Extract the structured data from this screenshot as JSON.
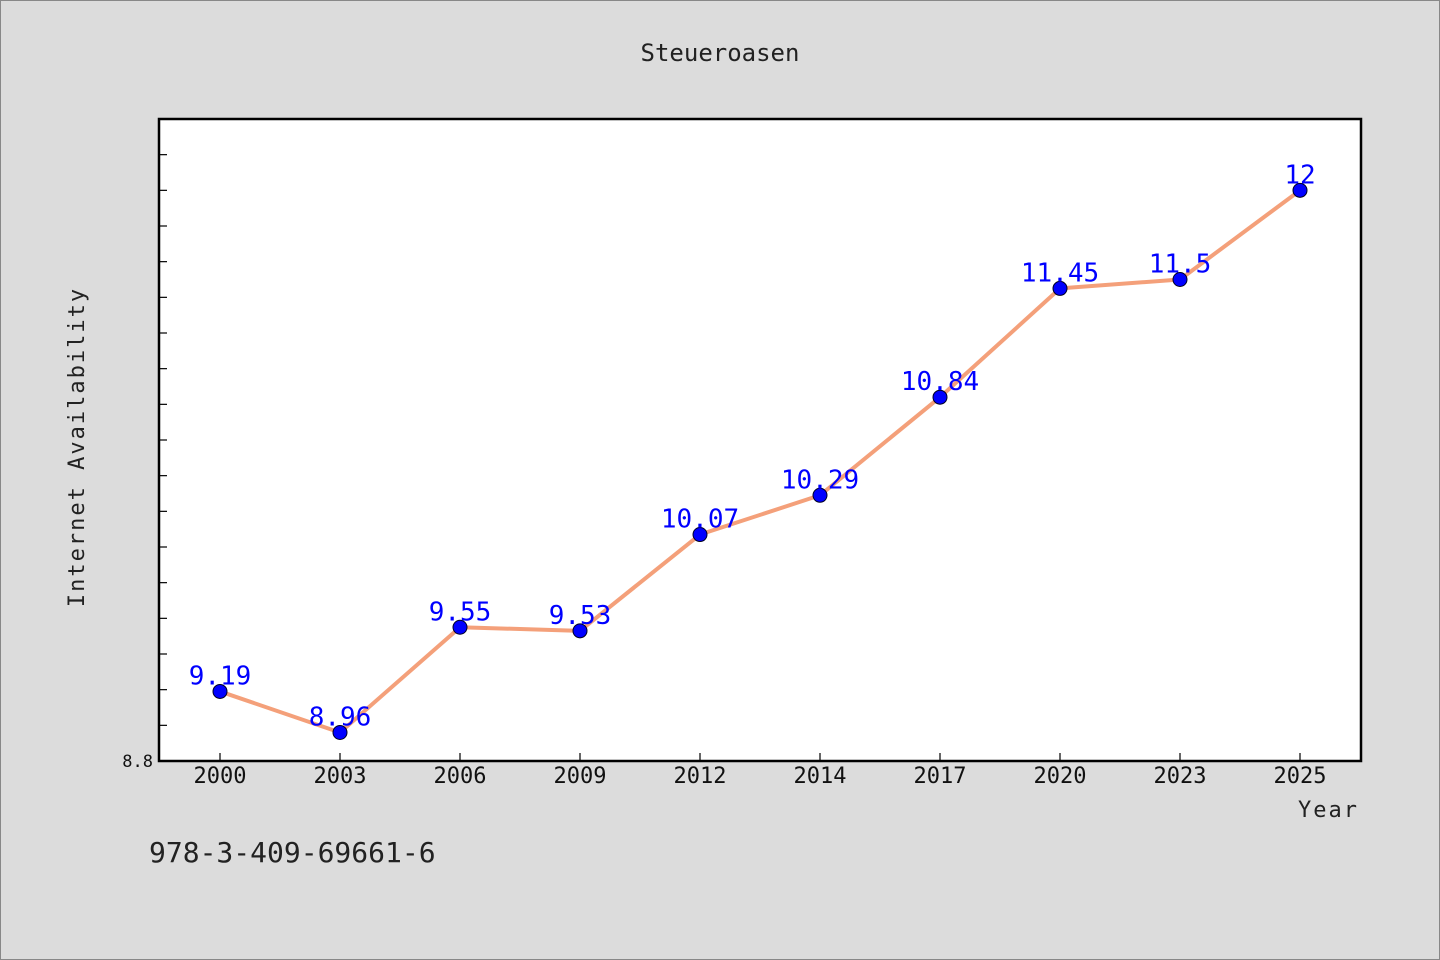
{
  "chart_data": {
    "type": "line",
    "title": "Steueroasen",
    "xlabel": "Year",
    "ylabel": "Internet Availability",
    "categories": [
      "2000",
      "2003",
      "2006",
      "2009",
      "2012",
      "2014",
      "2017",
      "2020",
      "2023",
      "2025"
    ],
    "series": [
      {
        "values": [
          9.19,
          8.96,
          9.55,
          9.53,
          10.07,
          10.29,
          10.84,
          11.45,
          11.5,
          12
        ],
        "labels": [
          "9.19",
          "8.96",
          "9.55",
          "9.53",
          "10.07",
          "10.29",
          "10.84",
          "11.45",
          "11.5",
          "12"
        ],
        "line_color": "#f4a07a",
        "marker_color": "#0000ff"
      }
    ],
    "ylim": [
      8.8,
      12.4
    ],
    "y_tick_label": "8.8",
    "grid": false,
    "legend": "none"
  },
  "footer_text": "978-3-409-69661-6"
}
